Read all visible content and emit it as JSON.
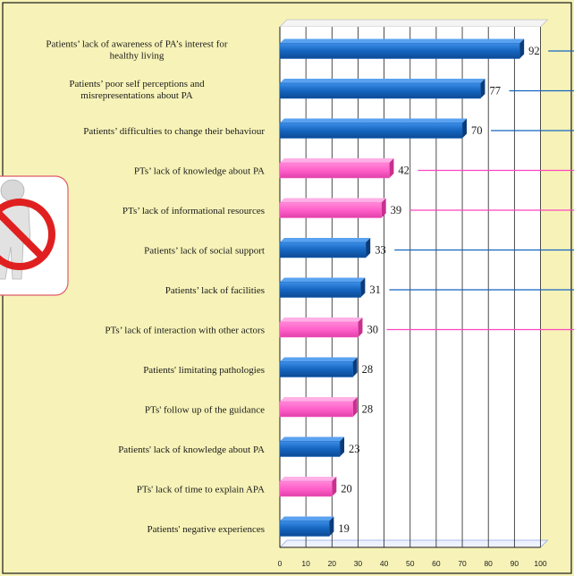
{
  "chart_data": {
    "type": "bar",
    "orientation": "horizontal",
    "title": "",
    "xlabel": "",
    "ylabel": "",
    "xlim": [
      0,
      100
    ],
    "x_ticks": [
      0,
      10,
      20,
      30,
      40,
      50,
      60,
      70,
      80,
      90,
      100
    ],
    "grid": true,
    "colors": {
      "patients": "#1565c0",
      "pts": "#ff66cc"
    },
    "bars": [
      {
        "label": "Patients’ lack of awareness of PA’s interest for healthy living",
        "value": 92,
        "group": "patients"
      },
      {
        "label": "Patients’ poor self perceptions and misrepresentations about PA",
        "value": 77,
        "group": "patients"
      },
      {
        "label": "Patients’ difficulties to change their behaviour",
        "value": 70,
        "group": "patients"
      },
      {
        "label": "PTs’ lack of knowledge about PA",
        "value": 42,
        "group": "pts"
      },
      {
        "label": "PTs’ lack of informational resources",
        "value": 39,
        "group": "pts"
      },
      {
        "label": "Patients’ lack of social support",
        "value": 33,
        "group": "patients"
      },
      {
        "label": "Patients’ lack of facilities",
        "value": 31,
        "group": "patients"
      },
      {
        "label": "PTs’ lack of interaction with other actors",
        "value": 30,
        "group": "pts"
      },
      {
        "label": "Patients' limitating pathologies",
        "value": 28,
        "group": "patients"
      },
      {
        "label": "PTs' follow up of the guidance",
        "value": 28,
        "group": "pts"
      },
      {
        "label": "Patients' lack of knowledge about PA",
        "value": 23,
        "group": "patients"
      },
      {
        "label": "PTs' lack of time to explain APA",
        "value": 20,
        "group": "pts"
      },
      {
        "label": "Patients' negative experiences",
        "value": 19,
        "group": "patients"
      }
    ],
    "leader_lines": [
      0,
      1,
      2,
      3,
      4,
      5,
      6,
      7
    ]
  },
  "icon": {
    "name": "no-entry-figure-icon"
  }
}
